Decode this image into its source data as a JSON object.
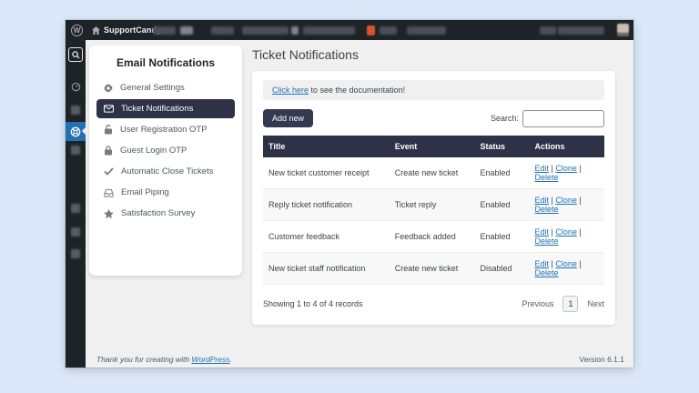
{
  "admin_bar": {
    "site_name": "SupportCandy"
  },
  "plugin_sidebar": {
    "title": "Email Notifications",
    "items": [
      {
        "icon": "gear-icon",
        "label": "General Settings",
        "active": false
      },
      {
        "icon": "envelope-icon",
        "label": "Ticket Notifications",
        "active": true
      },
      {
        "icon": "unlock-icon",
        "label": "User Registration OTP",
        "active": false
      },
      {
        "icon": "lock-icon",
        "label": "Guest Login OTP",
        "active": false
      },
      {
        "icon": "check-icon",
        "label": "Automatic Close Tickets",
        "active": false
      },
      {
        "icon": "inbox-icon",
        "label": "Email Piping",
        "active": false
      },
      {
        "icon": "star-icon",
        "label": "Satisfaction Survey",
        "active": false
      }
    ]
  },
  "main": {
    "page_title": "Ticket Notifications",
    "notice": {
      "link_text": "Click here",
      "text": " to see the documentation!"
    },
    "toolbar": {
      "add_new_label": "Add new",
      "search_label": "Search:",
      "search_value": ""
    },
    "table": {
      "headers": [
        "Title",
        "Event",
        "Status",
        "Actions"
      ],
      "action_separator": " | ",
      "rows": [
        {
          "title": "New ticket customer receipt",
          "event": "Create new ticket",
          "status": "Enabled",
          "actions": [
            "Edit",
            "Clone",
            "Delete"
          ]
        },
        {
          "title": "Reply ticket notification",
          "event": "Ticket reply",
          "status": "Enabled",
          "actions": [
            "Edit",
            "Clone",
            "Delete"
          ]
        },
        {
          "title": "Customer feedback",
          "event": "Feedback added",
          "status": "Enabled",
          "actions": [
            "Edit",
            "Clone",
            "Delete"
          ]
        },
        {
          "title": "New ticket staff notification",
          "event": "Create new ticket",
          "status": "Disabled",
          "actions": [
            "Edit",
            "Clone",
            "Delete"
          ]
        }
      ]
    },
    "pagination": {
      "summary": "Showing 1 to 4 of 4 records",
      "previous_label": "Previous",
      "page": "1",
      "next_label": "Next"
    }
  },
  "footer": {
    "thanks_prefix": "Thank you for creating with ",
    "link_text": "WordPress",
    "suffix": ".",
    "version": "Version 6.1.1"
  },
  "colors": {
    "accent_dark": "#2d3247",
    "link_blue": "#2271b1",
    "active_rail_blue": "#2271b1",
    "badge_orange": "#d9532f",
    "admin_dark": "#1d2327"
  }
}
